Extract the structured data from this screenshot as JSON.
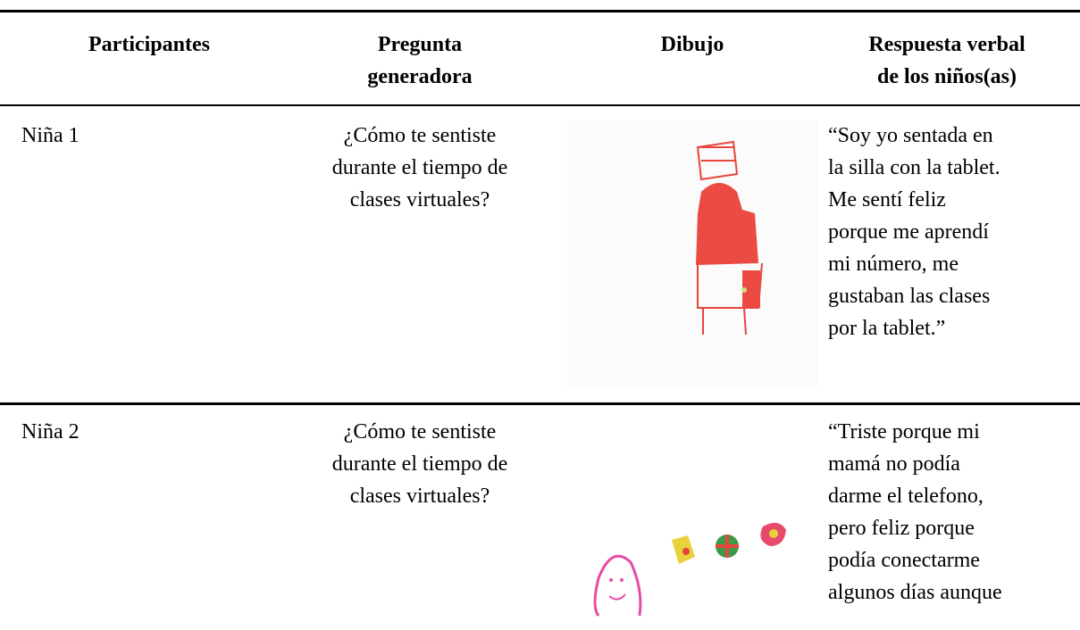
{
  "header": {
    "columns": [
      "Participantes",
      [
        "Pregunta",
        "generadora"
      ],
      "Dibujo",
      [
        "Respuesta verbal",
        "de los niños(as)"
      ]
    ]
  },
  "rows": [
    {
      "participant": "Niña 1",
      "question": [
        "¿Cómo te sentiste",
        "durante el tiempo de",
        "clases virtuales?"
      ],
      "response": [
        "“Soy yo sentada en",
        "la silla con la tablet.",
        "Me sentí feliz",
        "porque me aprendí",
        "mi número, me",
        "gustaban las clases",
        "por la tablet.”"
      ]
    },
    {
      "participant": "Niña 2",
      "question": [
        "¿Cómo te sentiste",
        "durante el tiempo de",
        "clases virtuales?"
      ],
      "response": [
        "“Triste porque mi",
        "mamá no podía",
        "darme el telefono,",
        "pero feliz porque",
        "podía conectarme",
        "algunos días aunque"
      ]
    }
  ]
}
